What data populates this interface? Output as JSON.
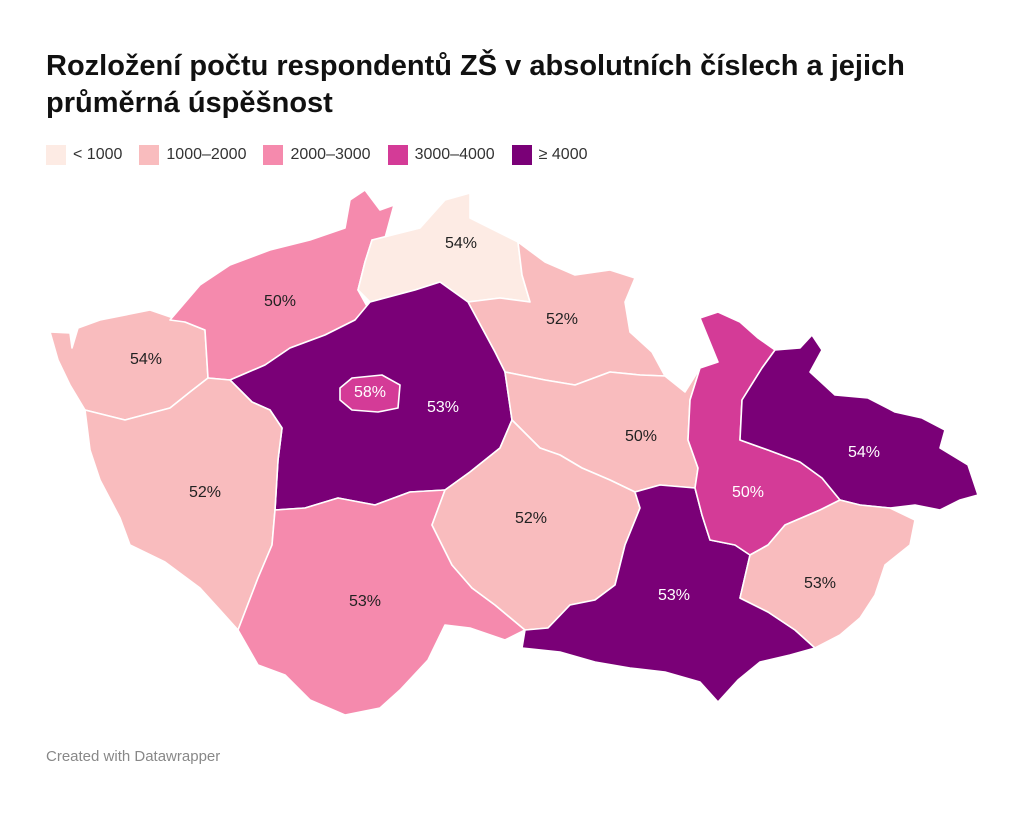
{
  "title": "Rozložení počtu respondentů ZŠ v absolutních číslech a jejich průměrná úspěšnost",
  "legend": [
    {
      "label": "< 1000",
      "color": "#fdebe4"
    },
    {
      "label": "1000–2000",
      "color": "#f9bcbe"
    },
    {
      "label": "2000–3000",
      "color": "#f58aad"
    },
    {
      "label": "3000–4000",
      "color": "#d43b97"
    },
    {
      "label": "≥ 4000",
      "color": "#7a0077"
    }
  ],
  "regions": [
    {
      "label": "54%",
      "color": "#f9bcbe"
    },
    {
      "label": "50%",
      "color": "#f58aad"
    },
    {
      "label": "54%",
      "color": "#fdebe4"
    },
    {
      "label": "52%",
      "color": "#f9bcbe"
    },
    {
      "label": "53%",
      "color": "#7a0077"
    },
    {
      "label": "58%",
      "color": "#d43b97"
    },
    {
      "label": "52%",
      "color": "#f9bcbe"
    },
    {
      "label": "53%",
      "color": "#f58aad"
    },
    {
      "label": "50%",
      "color": "#f9bcbe"
    },
    {
      "label": "52%",
      "color": "#f9bcbe"
    },
    {
      "label": "53%",
      "color": "#7a0077"
    },
    {
      "label": "50%",
      "color": "#d43b97"
    },
    {
      "label": "54%",
      "color": "#7a0077"
    },
    {
      "label": "53%",
      "color": "#f9bcbe"
    }
  ],
  "footer": "Created with Datawrapper"
}
